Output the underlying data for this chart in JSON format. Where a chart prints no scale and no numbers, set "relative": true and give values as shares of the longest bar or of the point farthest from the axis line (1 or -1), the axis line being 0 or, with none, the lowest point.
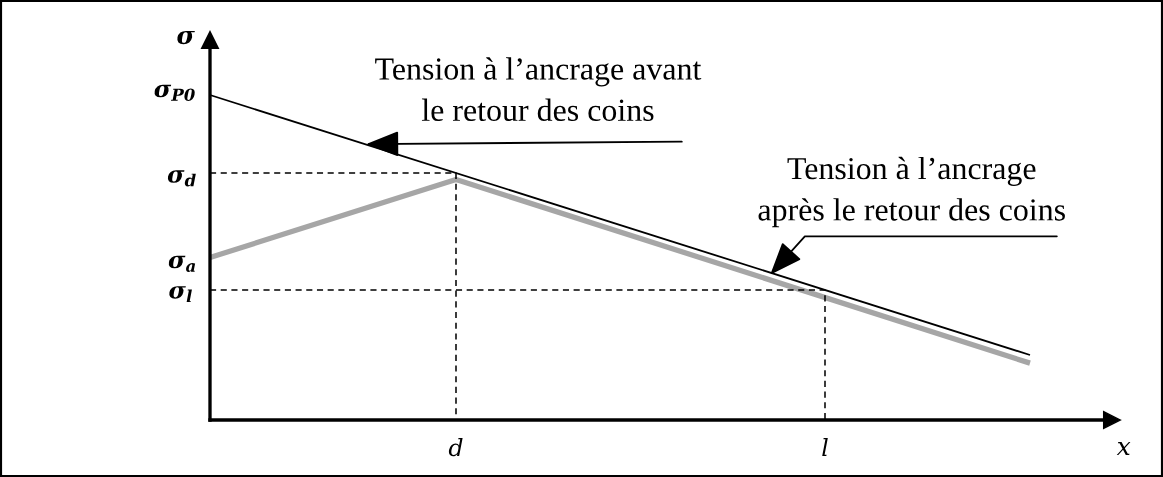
{
  "chart_data": {
    "type": "line",
    "relative": true,
    "ylabel": "σ",
    "xlabel": "x",
    "categories": [
      null,
      null,
      null,
      null,
      null,
      null,
      "d",
      null,
      null,
      null,
      null,
      null,
      null,
      null,
      null,
      "l",
      null,
      null,
      null,
      null,
      null,
      null,
      null
    ],
    "series": [
      {
        "color": "#a6a6a6",
        "values": [
          0.5,
          null,
          null,
          null,
          null,
          null,
          0.74,
          null,
          null,
          null,
          null,
          null,
          null,
          null,
          null,
          null,
          null,
          null,
          null,
          null,
          0.175,
          null,
          null
        ]
      },
      {
        "color": "#000000",
        "values": [
          1,
          null,
          null,
          null,
          null,
          null,
          null,
          null,
          null,
          null,
          null,
          null,
          null,
          null,
          null,
          null,
          null,
          null,
          null,
          null,
          0.2,
          null,
          null
        ]
      },
      {
        "color": "#000000",
        "type": "step",
        "line_style": "dashed",
        "values": [
          0.76,
          null,
          null,
          null,
          null,
          null,
          0,
          null,
          null,
          null,
          null,
          null,
          null,
          null,
          null,
          null,
          null,
          null,
          null,
          null,
          null,
          null,
          null
        ]
      },
      {
        "color": "#000000",
        "type": "step",
        "line_style": "dashed",
        "values": [
          0.4,
          null,
          null,
          null,
          null,
          null,
          null,
          null,
          null,
          null,
          null,
          null,
          null,
          null,
          null,
          0,
          null,
          null,
          null,
          null,
          null,
          null,
          null
        ]
      }
    ],
    "annotations": [
      "Tension à l’ancrage avant\nle retour des coins",
      "Tension à l’ancrage\naprès le retour des coins",
      "σ$_{P0}$",
      "σ$_{d}$",
      "σ$_{a}$",
      "σ$_{l}$"
    ]
  }
}
